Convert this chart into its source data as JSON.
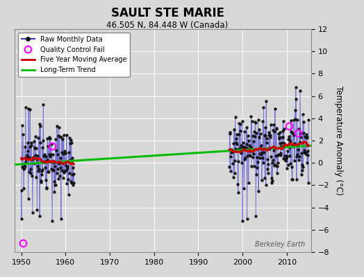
{
  "title": "SAULT STE MARIE",
  "subtitle": "46.505 N, 84.448 W (Canada)",
  "ylabel": "Temperature Anomaly (°C)",
  "watermark": "Berkeley Earth",
  "xlim": [
    1948.5,
    2015.5
  ],
  "ylim": [
    -8,
    12
  ],
  "yticks": [
    -8,
    -6,
    -4,
    -2,
    0,
    2,
    4,
    6,
    8,
    10,
    12
  ],
  "xticks": [
    1950,
    1960,
    1970,
    1980,
    1990,
    2000,
    2010
  ],
  "bg_color": "#d8d8d8",
  "plot_bg": "#d8d8d8",
  "raw_color": "#3333cc",
  "raw_alpha": 0.6,
  "dot_color": "#111111",
  "qc_color": "#ff00ff",
  "ma_color": "#cc0000",
  "trend_color": "#00bb00",
  "trend_x": [
    1948.5,
    2015.5
  ],
  "trend_y": [
    -0.15,
    1.55
  ],
  "qc_fail_1": [
    1950.33,
    -7.2
  ],
  "qc_fail_2": [
    1957.0,
    1.5
  ],
  "qc_fail_3": [
    2010.5,
    3.3
  ],
  "qc_fail_4": [
    2012.5,
    2.7
  ],
  "period1_start": 1950,
  "period1_end": 1961,
  "period2_start": 1997,
  "period2_end": 2014,
  "seed1": 17,
  "seed2": 83
}
